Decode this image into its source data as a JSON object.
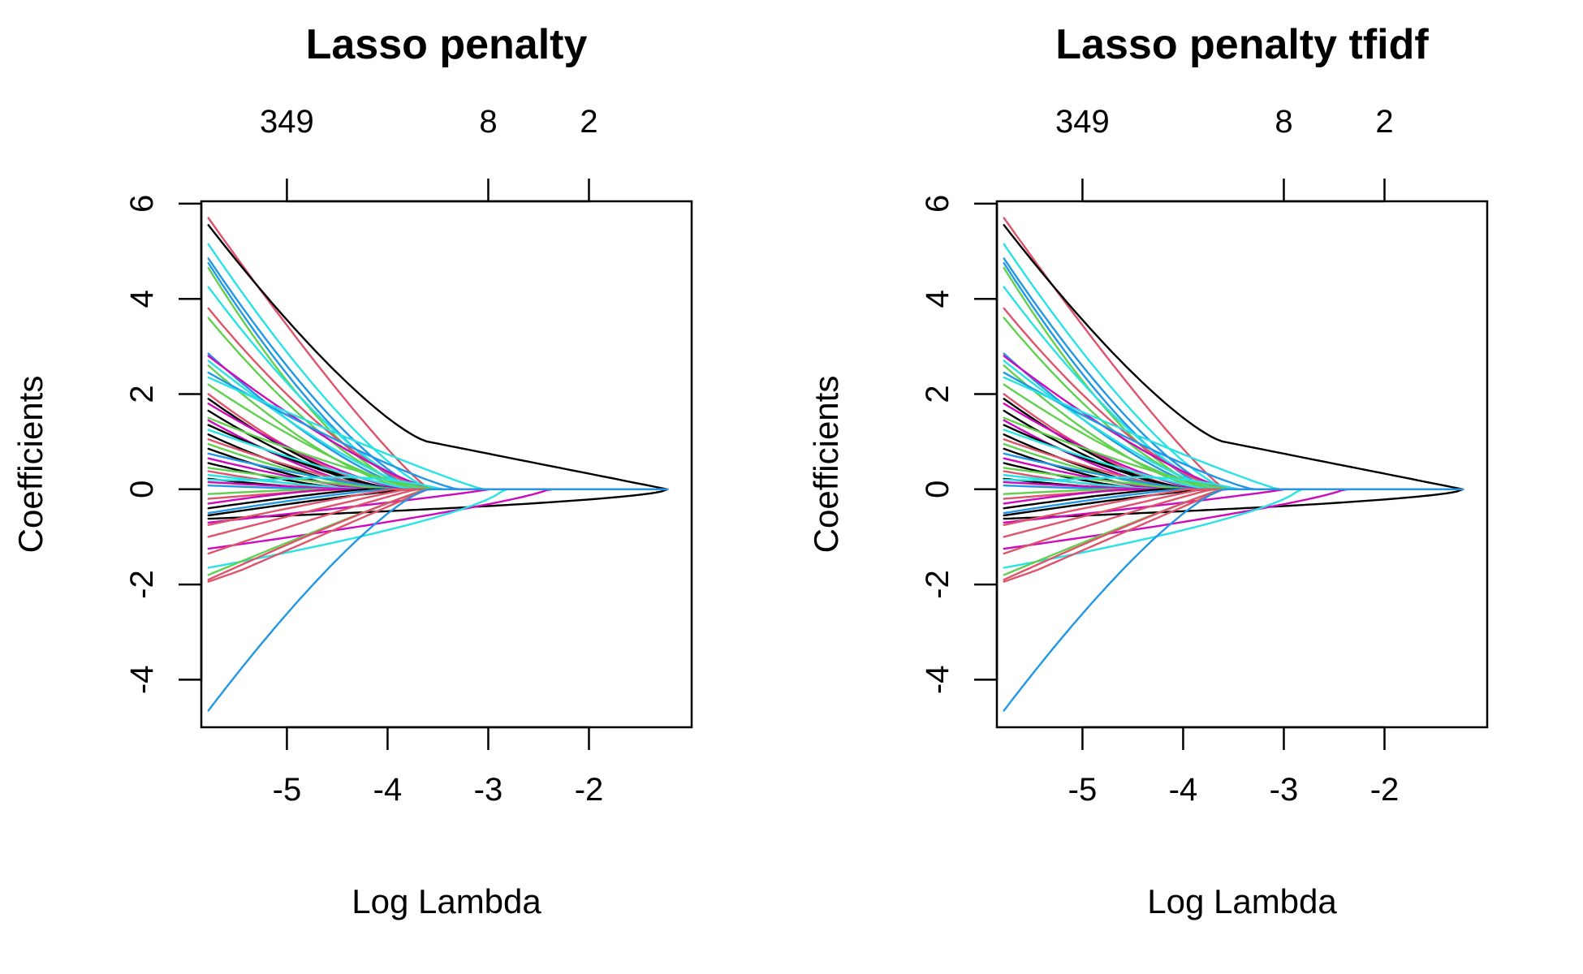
{
  "colors": [
    "#000000",
    "#DF536B",
    "#61D04F",
    "#2297E6",
    "#28E2E5",
    "#CD0BBC"
  ],
  "chart_data": [
    {
      "type": "line",
      "title": "Lasso penalty",
      "xlabel": "Log Lambda",
      "ylabel": "Coefficients",
      "xlim": [
        -5.85,
        -0.98
      ],
      "ylim": [
        -5.0,
        6.05
      ],
      "x_ticks": [
        -5,
        -4,
        -3,
        -2
      ],
      "x_tick_labels": [
        "-5",
        "-4",
        "-3",
        "-2"
      ],
      "y_ticks": [
        -4,
        -2,
        0,
        2,
        4,
        6
      ],
      "y_tick_labels": [
        "-4",
        "-2",
        "0",
        "2",
        "4",
        "6"
      ],
      "top_ticks": [
        -5,
        -3,
        -2
      ],
      "top_tick_labels": [
        "349",
        "8",
        "2"
      ],
      "grid": false,
      "legend": "none",
      "lambda_range": [
        -5.78,
        -1.22
      ],
      "series": [
        {
          "start": 5.7,
          "zero_at": -3.58,
          "shape": 1.15,
          "color": "#DF536B"
        },
        {
          "start": 5.55,
          "zero_at": -3.33,
          "shape": 1.3,
          "color": "#000000",
          "kink": [
            -3.6,
            1.0
          ]
        },
        {
          "start": 5.15,
          "zero_at": -3.55,
          "shape": 1.35,
          "color": "#28E2E5"
        },
        {
          "start": 4.85,
          "zero_at": -3.62,
          "shape": 1.4,
          "color": "#2297E6"
        },
        {
          "start": 4.75,
          "zero_at": -3.68,
          "shape": 1.45,
          "color": "#2297E6"
        },
        {
          "start": 4.65,
          "zero_at": -3.72,
          "shape": 1.5,
          "color": "#61D04F"
        },
        {
          "start": 4.25,
          "zero_at": -3.6,
          "shape": 1.45,
          "color": "#28E2E5"
        },
        {
          "start": 3.8,
          "zero_at": -3.55,
          "shape": 1.5,
          "color": "#DF536B"
        },
        {
          "start": 3.6,
          "zero_at": -3.65,
          "shape": 1.5,
          "color": "#61D04F"
        },
        {
          "start": 2.85,
          "zero_at": -3.7,
          "shape": 1.4,
          "color": "#2297E6"
        },
        {
          "start": 2.8,
          "zero_at": -3.52,
          "shape": 1.3,
          "color": "#CD0BBC"
        },
        {
          "start": 2.7,
          "zero_at": -3.62,
          "shape": 1.35,
          "color": "#28E2E5"
        },
        {
          "start": 2.6,
          "zero_at": -3.75,
          "shape": 1.45,
          "color": "#61D04F"
        },
        {
          "start": 2.45,
          "zero_at": -3.3,
          "shape": 1.2,
          "color": "#2297E6"
        },
        {
          "start": 2.35,
          "zero_at": -3.05,
          "shape": 1.1,
          "color": "#28E2E5"
        },
        {
          "start": 2.2,
          "zero_at": -3.68,
          "shape": 1.35,
          "color": "#61D04F"
        },
        {
          "start": 2.0,
          "zero_at": -3.9,
          "shape": 1.5,
          "color": "#DF536B"
        },
        {
          "start": 1.9,
          "zero_at": -4.0,
          "shape": 1.4,
          "color": "#000000"
        },
        {
          "start": 1.8,
          "zero_at": -3.8,
          "shape": 1.4,
          "color": "#CD0BBC"
        },
        {
          "start": 1.65,
          "zero_at": -3.95,
          "shape": 1.45,
          "color": "#000000"
        },
        {
          "start": 1.5,
          "zero_at": -3.5,
          "shape": 1.3,
          "color": "#61D04F"
        },
        {
          "start": 1.45,
          "zero_at": -4.05,
          "shape": 1.4,
          "color": "#CD0BBC"
        },
        {
          "start": 1.35,
          "zero_at": -3.88,
          "shape": 1.35,
          "color": "#000000"
        },
        {
          "start": 1.25,
          "zero_at": -3.72,
          "shape": 1.25,
          "color": "#28E2E5"
        },
        {
          "start": 1.15,
          "zero_at": -4.1,
          "shape": 1.4,
          "color": "#000000"
        },
        {
          "start": 1.05,
          "zero_at": -3.95,
          "shape": 1.3,
          "color": "#DF536B"
        },
        {
          "start": 0.95,
          "zero_at": -4.05,
          "shape": 1.35,
          "color": "#61D04F"
        },
        {
          "start": 0.85,
          "zero_at": -4.2,
          "shape": 1.4,
          "color": "#000000"
        },
        {
          "start": 0.75,
          "zero_at": -3.85,
          "shape": 1.3,
          "color": "#2297E6"
        },
        {
          "start": 0.65,
          "zero_at": -4.15,
          "shape": 1.3,
          "color": "#CD0BBC"
        },
        {
          "start": 0.55,
          "zero_at": -4.3,
          "shape": 1.4,
          "color": "#000000"
        },
        {
          "start": 0.45,
          "zero_at": -3.9,
          "shape": 1.2,
          "color": "#61D04F"
        },
        {
          "start": 0.38,
          "zero_at": -4.4,
          "shape": 1.35,
          "color": "#DF536B"
        },
        {
          "start": 0.3,
          "zero_at": -4.2,
          "shape": 1.25,
          "color": "#28E2E5"
        },
        {
          "start": 0.22,
          "zero_at": -4.5,
          "shape": 1.3,
          "color": "#000000"
        },
        {
          "start": 0.15,
          "zero_at": -4.3,
          "shape": 1.2,
          "color": "#CD0BBC"
        },
        {
          "start": 0.08,
          "zero_at": -4.6,
          "shape": 1.2,
          "color": "#2297E6"
        },
        {
          "start": 0.2,
          "zero_at": -3.45,
          "shape": 1.0,
          "color": "#28E2E5",
          "mid_bump": 0.3
        },
        {
          "start": -0.1,
          "zero_at": -4.7,
          "shape": 1.2,
          "color": "#61D04F"
        },
        {
          "start": -0.2,
          "zero_at": -4.4,
          "shape": 1.2,
          "color": "#DF536B"
        },
        {
          "start": -0.3,
          "zero_at": -4.55,
          "shape": 1.25,
          "color": "#CD0BBC"
        },
        {
          "start": -0.4,
          "zero_at": -4.2,
          "shape": 1.2,
          "color": "#000000"
        },
        {
          "start": -0.5,
          "zero_at": -4.0,
          "shape": 1.2,
          "color": "#2297E6"
        },
        {
          "start": -0.55,
          "zero_at": -3.75,
          "shape": 1.15,
          "color": "#000000"
        },
        {
          "start": -0.62,
          "zero_at": -1.22,
          "shape": 0.6,
          "color": "#000000"
        },
        {
          "start": -0.7,
          "zero_at": -3.0,
          "shape": 0.9,
          "color": "#CD0BBC"
        },
        {
          "start": -0.75,
          "zero_at": -3.95,
          "shape": 1.1,
          "color": "#DF536B"
        },
        {
          "start": -1.0,
          "zero_at": -3.8,
          "shape": 1.1,
          "color": "#DF536B"
        },
        {
          "start": -1.25,
          "zero_at": -2.4,
          "shape": 0.8,
          "color": "#CD0BBC"
        },
        {
          "start": -1.35,
          "zero_at": -3.7,
          "shape": 1.1,
          "color": "#DF536B"
        },
        {
          "start": -1.65,
          "zero_at": -2.85,
          "shape": 0.7,
          "color": "#28E2E5"
        },
        {
          "start": -1.8,
          "zero_at": -3.62,
          "shape": 1.05,
          "color": "#61D04F"
        },
        {
          "start": -1.9,
          "zero_at": -3.6,
          "shape": 1.1,
          "color": "#DF536B"
        },
        {
          "start": -2.0,
          "zero_at": -3.6,
          "shape": 1.0,
          "color": "#DF536B",
          "hook": true
        },
        {
          "start": -4.65,
          "zero_at": -3.6,
          "shape": 1.3,
          "color": "#2297E6"
        },
        {
          "start": 1.0,
          "zero_at": -1.22,
          "shape": 0.75,
          "color": "#000000",
          "late": true
        }
      ]
    },
    {
      "type": "line",
      "title": "Lasso penalty tfidf",
      "xlabel": "Log Lambda",
      "ylabel": "Coefficients",
      "xlim": [
        -5.85,
        -0.98
      ],
      "ylim": [
        -5.0,
        6.05
      ],
      "x_ticks": [
        -5,
        -4,
        -3,
        -2
      ],
      "x_tick_labels": [
        "-5",
        "-4",
        "-3",
        "-2"
      ],
      "y_ticks": [
        -4,
        -2,
        0,
        2,
        4,
        6
      ],
      "y_tick_labels": [
        "-4",
        "-2",
        "0",
        "2",
        "4",
        "6"
      ],
      "top_ticks": [
        -5,
        -3,
        -2
      ],
      "top_tick_labels": [
        "349",
        "8",
        "2"
      ],
      "grid": false,
      "legend": "none",
      "lambda_range": [
        -5.78,
        -1.22
      ],
      "series": [
        {
          "start": 5.7,
          "zero_at": -3.58,
          "shape": 1.15,
          "color": "#DF536B"
        },
        {
          "start": 5.55,
          "zero_at": -3.33,
          "shape": 1.3,
          "color": "#000000",
          "kink": [
            -3.6,
            1.0
          ]
        },
        {
          "start": 5.15,
          "zero_at": -3.55,
          "shape": 1.35,
          "color": "#28E2E5"
        },
        {
          "start": 4.85,
          "zero_at": -3.62,
          "shape": 1.4,
          "color": "#2297E6"
        },
        {
          "start": 4.75,
          "zero_at": -3.68,
          "shape": 1.45,
          "color": "#2297E6"
        },
        {
          "start": 4.65,
          "zero_at": -3.72,
          "shape": 1.5,
          "color": "#61D04F"
        },
        {
          "start": 4.25,
          "zero_at": -3.6,
          "shape": 1.45,
          "color": "#28E2E5"
        },
        {
          "start": 3.8,
          "zero_at": -3.55,
          "shape": 1.5,
          "color": "#DF536B"
        },
        {
          "start": 3.6,
          "zero_at": -3.65,
          "shape": 1.5,
          "color": "#61D04F"
        },
        {
          "start": 2.85,
          "zero_at": -3.7,
          "shape": 1.4,
          "color": "#2297E6"
        },
        {
          "start": 2.8,
          "zero_at": -3.52,
          "shape": 1.3,
          "color": "#CD0BBC"
        },
        {
          "start": 2.7,
          "zero_at": -3.62,
          "shape": 1.35,
          "color": "#28E2E5"
        },
        {
          "start": 2.6,
          "zero_at": -3.75,
          "shape": 1.45,
          "color": "#61D04F"
        },
        {
          "start": 2.45,
          "zero_at": -3.3,
          "shape": 1.2,
          "color": "#2297E6"
        },
        {
          "start": 2.35,
          "zero_at": -3.05,
          "shape": 1.1,
          "color": "#28E2E5"
        },
        {
          "start": 2.2,
          "zero_at": -3.68,
          "shape": 1.35,
          "color": "#61D04F"
        },
        {
          "start": 2.0,
          "zero_at": -3.9,
          "shape": 1.5,
          "color": "#DF536B"
        },
        {
          "start": 1.9,
          "zero_at": -4.0,
          "shape": 1.4,
          "color": "#000000"
        },
        {
          "start": 1.8,
          "zero_at": -3.8,
          "shape": 1.4,
          "color": "#CD0BBC"
        },
        {
          "start": 1.65,
          "zero_at": -3.95,
          "shape": 1.45,
          "color": "#000000"
        },
        {
          "start": 1.5,
          "zero_at": -3.5,
          "shape": 1.3,
          "color": "#61D04F"
        },
        {
          "start": 1.45,
          "zero_at": -4.05,
          "shape": 1.4,
          "color": "#CD0BBC"
        },
        {
          "start": 1.35,
          "zero_at": -3.88,
          "shape": 1.35,
          "color": "#000000"
        },
        {
          "start": 1.25,
          "zero_at": -3.72,
          "shape": 1.25,
          "color": "#28E2E5"
        },
        {
          "start": 1.15,
          "zero_at": -4.1,
          "shape": 1.4,
          "color": "#000000"
        },
        {
          "start": 1.05,
          "zero_at": -3.95,
          "shape": 1.3,
          "color": "#DF536B"
        },
        {
          "start": 0.95,
          "zero_at": -4.05,
          "shape": 1.35,
          "color": "#61D04F"
        },
        {
          "start": 0.85,
          "zero_at": -4.2,
          "shape": 1.4,
          "color": "#000000"
        },
        {
          "start": 0.75,
          "zero_at": -3.85,
          "shape": 1.3,
          "color": "#2297E6"
        },
        {
          "start": 0.65,
          "zero_at": -4.15,
          "shape": 1.3,
          "color": "#CD0BBC"
        },
        {
          "start": 0.55,
          "zero_at": -4.3,
          "shape": 1.4,
          "color": "#000000"
        },
        {
          "start": 0.45,
          "zero_at": -3.9,
          "shape": 1.2,
          "color": "#61D04F"
        },
        {
          "start": 0.38,
          "zero_at": -4.4,
          "shape": 1.35,
          "color": "#DF536B"
        },
        {
          "start": 0.3,
          "zero_at": -4.2,
          "shape": 1.25,
          "color": "#28E2E5"
        },
        {
          "start": 0.22,
          "zero_at": -4.5,
          "shape": 1.3,
          "color": "#000000"
        },
        {
          "start": 0.15,
          "zero_at": -4.3,
          "shape": 1.2,
          "color": "#CD0BBC"
        },
        {
          "start": 0.08,
          "zero_at": -4.6,
          "shape": 1.2,
          "color": "#2297E6"
        },
        {
          "start": 0.2,
          "zero_at": -3.45,
          "shape": 1.0,
          "color": "#28E2E5",
          "mid_bump": 0.3
        },
        {
          "start": -0.1,
          "zero_at": -4.7,
          "shape": 1.2,
          "color": "#61D04F"
        },
        {
          "start": -0.2,
          "zero_at": -4.4,
          "shape": 1.2,
          "color": "#DF536B"
        },
        {
          "start": -0.3,
          "zero_at": -4.55,
          "shape": 1.25,
          "color": "#CD0BBC"
        },
        {
          "start": -0.4,
          "zero_at": -4.2,
          "shape": 1.2,
          "color": "#000000"
        },
        {
          "start": -0.5,
          "zero_at": -4.0,
          "shape": 1.2,
          "color": "#2297E6"
        },
        {
          "start": -0.55,
          "zero_at": -3.75,
          "shape": 1.15,
          "color": "#000000"
        },
        {
          "start": -0.62,
          "zero_at": -1.22,
          "shape": 0.6,
          "color": "#000000"
        },
        {
          "start": -0.7,
          "zero_at": -3.0,
          "shape": 0.9,
          "color": "#CD0BBC"
        },
        {
          "start": -0.75,
          "zero_at": -3.95,
          "shape": 1.1,
          "color": "#DF536B"
        },
        {
          "start": -1.0,
          "zero_at": -3.8,
          "shape": 1.1,
          "color": "#DF536B"
        },
        {
          "start": -1.25,
          "zero_at": -2.4,
          "shape": 0.8,
          "color": "#CD0BBC"
        },
        {
          "start": -1.35,
          "zero_at": -3.7,
          "shape": 1.1,
          "color": "#DF536B"
        },
        {
          "start": -1.65,
          "zero_at": -2.85,
          "shape": 0.7,
          "color": "#28E2E5"
        },
        {
          "start": -1.8,
          "zero_at": -3.62,
          "shape": 1.05,
          "color": "#61D04F"
        },
        {
          "start": -1.9,
          "zero_at": -3.6,
          "shape": 1.1,
          "color": "#DF536B"
        },
        {
          "start": -2.0,
          "zero_at": -3.6,
          "shape": 1.0,
          "color": "#DF536B",
          "hook": true
        },
        {
          "start": -4.65,
          "zero_at": -3.6,
          "shape": 1.3,
          "color": "#2297E6"
        },
        {
          "start": 1.0,
          "zero_at": -1.22,
          "shape": 0.75,
          "color": "#000000",
          "late": true
        }
      ]
    }
  ]
}
